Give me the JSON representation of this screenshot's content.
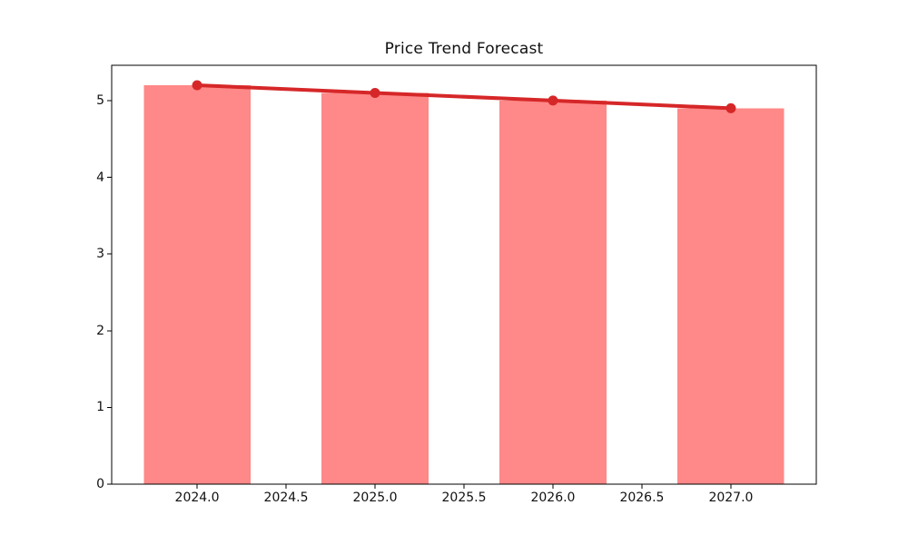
{
  "chart_data": {
    "type": "bar",
    "title": "Price Trend Forecast",
    "categories": [
      2024,
      2025,
      2026,
      2027
    ],
    "series": [
      {
        "name": "price-bars",
        "type": "bar",
        "values": [
          5.2,
          5.1,
          5.0,
          4.9
        ],
        "color": "#ff8888"
      },
      {
        "name": "trend-line",
        "type": "line",
        "values": [
          5.2,
          5.1,
          5.0,
          4.9
        ],
        "color": "#d62728",
        "marker": "circle"
      }
    ],
    "xlabel": "",
    "ylabel": "",
    "xtick_labels": [
      "2024.0",
      "2024.5",
      "2025.0",
      "2025.5",
      "2026.0",
      "2026.5",
      "2027.0"
    ],
    "xtick_values": [
      2024,
      2024.5,
      2025,
      2025.5,
      2026,
      2026.5,
      2027
    ],
    "ytick_labels": [
      "0",
      "1",
      "2",
      "3",
      "4",
      "5"
    ],
    "ytick_values": [
      0,
      1,
      2,
      3,
      4,
      5
    ],
    "xlim": [
      2023.52,
      2027.48
    ],
    "ylim": [
      0,
      5.46
    ],
    "bar_width": 0.6,
    "grid": false,
    "legend": "none",
    "background_color": "#ffffff",
    "spine_color": "#000000",
    "tick_color": "#000000"
  }
}
